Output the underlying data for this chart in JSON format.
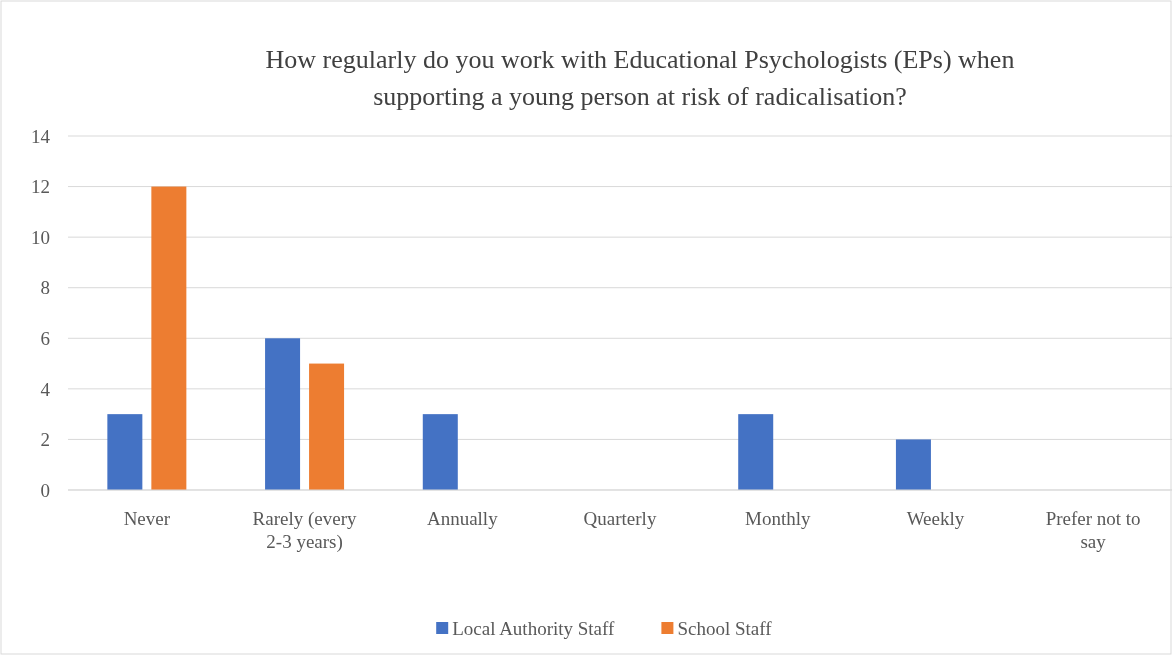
{
  "chart_data": {
    "type": "bar",
    "title": "How regularly do you work with Educational Psychologists (EPs) when supporting a young person at risk of radicalisation?",
    "categories": [
      "Never",
      "Rarely (every 2-3 years)",
      "Annually",
      "Quarterly",
      "Monthly",
      "Weekly",
      "Prefer not to say"
    ],
    "series": [
      {
        "name": "Local Authority Staff",
        "color": "#4472c4",
        "values": [
          3,
          6,
          3,
          0,
          3,
          2,
          0
        ]
      },
      {
        "name": "School Staff",
        "color": "#ed7d31",
        "values": [
          12,
          5,
          0,
          0,
          0,
          0,
          0
        ]
      }
    ],
    "ylim": [
      0,
      14
    ],
    "yticks": [
      0,
      2,
      4,
      6,
      8,
      10,
      12,
      14
    ],
    "grid": "y",
    "legend": "bottom"
  }
}
